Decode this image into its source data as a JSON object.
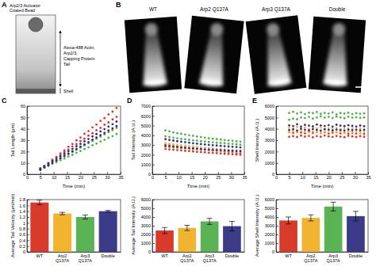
{
  "figure": {
    "panel_labels": [
      "A",
      "B",
      "C",
      "D",
      "E"
    ],
    "schematic": {
      "bead_label": [
        "Arp2/3 Activator",
        "Coated Bead"
      ],
      "tail_label": [
        "Alexa-488 Actin,",
        "Arp2/3,",
        "Capping Protein",
        "Tail"
      ],
      "shell_label": "Shell"
    },
    "images": {
      "labels": [
        "WT",
        "Arp2 Q137A",
        "Arp3 Q137A",
        "Double"
      ]
    }
  },
  "chart_data": [
    {
      "type": "scatter",
      "x_label": "Time (min)",
      "y_label": "Tail Length (μm)",
      "marker": "circle",
      "x": [
        5,
        6.5,
        8,
        9.5,
        11,
        12.5,
        14,
        15.5,
        17,
        18.5,
        20,
        21.5,
        23,
        24.5,
        26,
        27.5,
        29,
        30.5,
        32,
        33.5
      ],
      "xlim": [
        0,
        35
      ],
      "xticks": [
        0,
        5,
        10,
        15,
        20,
        25,
        30,
        35
      ],
      "ylim": [
        0,
        60
      ],
      "yticks": [
        0,
        10,
        20,
        30,
        40,
        50,
        60
      ],
      "series": [
        {
          "color": "#e0322a",
          "values": [
            4.0,
            6.9,
            9.5,
            12.8,
            15.3,
            18.4,
            21.0,
            24.2,
            26.6,
            29.9,
            32.4,
            35.6,
            38.0,
            41.3,
            43.7,
            47.0,
            49.4,
            52.7,
            55.1,
            58.3
          ]
        },
        {
          "color": "#e0322a",
          "values": [
            5.2,
            7.3,
            10.0,
            12.1,
            14.8,
            16.9,
            19.6,
            21.7,
            24.4,
            26.5,
            29.2,
            31.3,
            34.0,
            36.1,
            38.8,
            40.9,
            43.6,
            45.7,
            48.4,
            50.5
          ]
        },
        {
          "color": "#f3b535",
          "values": [
            4.1,
            6.0,
            8.2,
            10.0,
            12.2,
            14.1,
            16.3,
            18.1,
            20.3,
            22.2,
            24.4,
            26.2,
            28.4,
            30.3,
            32.5,
            34.3,
            36.5,
            38.4,
            40.6,
            42.4
          ]
        },
        {
          "color": "#f3b535",
          "values": [
            5.0,
            6.9,
            8.8,
            10.6,
            12.5,
            14.4,
            16.2,
            18.1,
            20.0,
            21.9,
            23.7,
            25.6,
            27.5,
            29.4,
            31.2,
            33.1,
            35.0,
            36.9,
            38.7,
            40.6
          ]
        },
        {
          "color": "#4fb04a",
          "values": [
            4.2,
            5.9,
            8.0,
            9.8,
            11.9,
            13.7,
            15.8,
            17.6,
            19.7,
            21.5,
            23.6,
            25.4,
            27.5,
            29.3,
            31.4,
            33.2,
            35.3,
            37.1,
            39.2,
            41.0
          ]
        },
        {
          "color": "#4fb04a",
          "values": [
            3.9,
            5.7,
            7.2,
            9.0,
            10.5,
            12.3,
            13.8,
            15.6,
            17.1,
            18.9,
            20.4,
            22.2,
            23.7,
            25.5,
            27.0,
            28.8,
            30.3,
            32.1,
            33.6,
            35.4
          ]
        },
        {
          "color": "#2f2f8f",
          "values": [
            5.1,
            7.2,
            9.3,
            11.6,
            13.6,
            15.9,
            18.0,
            20.3,
            22.3,
            24.6,
            26.7,
            29.0,
            31.0,
            33.3,
            35.4,
            37.7,
            39.7,
            42.0,
            44.1,
            46.4
          ]
        },
        {
          "color": "#2f2f8f",
          "values": [
            3.8,
            6.1,
            8.0,
            10.1,
            12.0,
            14.2,
            16.1,
            18.2,
            20.1,
            22.3,
            24.2,
            26.3,
            28.2,
            30.4,
            32.3,
            34.4,
            36.3,
            38.5,
            40.4,
            42.5
          ]
        }
      ]
    },
    {
      "type": "bar",
      "y_label": "Average Tail Velocity (μm/min)",
      "categories": [
        "WT",
        "Arp2 Q137A",
        "Arp3 Q137A",
        "Double"
      ],
      "values": [
        1.7,
        1.32,
        1.2,
        1.4
      ],
      "errors": [
        0.08,
        0.04,
        0.07,
        0.03
      ],
      "colors": [
        "#d93b2b",
        "#f0b430",
        "#5ab453",
        "#3b3b8a"
      ],
      "ylim": [
        0,
        1.8
      ],
      "yticks": [
        0,
        0.2,
        0.4,
        0.6,
        0.8,
        1,
        1.2,
        1.4,
        1.6,
        1.8
      ]
    },
    {
      "type": "scatter",
      "x_label": "Time (min)",
      "y_label": "Tail Intensity (A.U.)",
      "marker": "circle",
      "x": [
        5,
        6.5,
        8,
        9.5,
        11,
        12.5,
        14,
        15.5,
        17,
        18.5,
        20,
        21.5,
        23,
        24.5,
        26,
        27.5,
        29,
        30.5,
        32,
        33.5
      ],
      "xlim": [
        0,
        35
      ],
      "xticks": [
        0,
        5,
        10,
        15,
        20,
        25,
        30,
        35
      ],
      "ylim": [
        0,
        7000
      ],
      "yticks": [
        0,
        1000,
        2000,
        3000,
        4000,
        5000,
        6000,
        7000
      ],
      "series": [
        {
          "color": "#e0322a",
          "values": [
            3050,
            2980,
            2900,
            2870,
            2800,
            2760,
            2700,
            2650,
            2620,
            2560,
            2520,
            2470,
            2430,
            2400,
            2360,
            2320,
            2280,
            2250,
            2210,
            2180
          ]
        },
        {
          "color": "#e0322a",
          "values": [
            2600,
            2550,
            2520,
            2480,
            2450,
            2400,
            2380,
            2340,
            2300,
            2280,
            2250,
            2210,
            2190,
            2160,
            2130,
            2100,
            2080,
            2050,
            2020,
            2000
          ]
        },
        {
          "color": "#f3b535",
          "values": [
            3200,
            3150,
            3080,
            3020,
            2980,
            2930,
            2880,
            2850,
            2800,
            2760,
            2720,
            2690,
            2650,
            2620,
            2580,
            2550,
            2520,
            2490,
            2460,
            2440
          ]
        },
        {
          "color": "#f3b535",
          "values": [
            2800,
            2760,
            2720,
            2700,
            2660,
            2630,
            2600,
            2570,
            2540,
            2510,
            2490,
            2460,
            2440,
            2410,
            2390,
            2370,
            2350,
            2320,
            2300,
            2280
          ]
        },
        {
          "color": "#4fb04a",
          "values": [
            4500,
            4400,
            4300,
            4220,
            4150,
            4080,
            4000,
            3950,
            3880,
            3820,
            3760,
            3700,
            3650,
            3600,
            3560,
            3510,
            3470,
            3430,
            3390,
            3350
          ]
        },
        {
          "color": "#4fb04a",
          "values": [
            3900,
            3820,
            3760,
            3700,
            3640,
            3590,
            3540,
            3490,
            3450,
            3400,
            3360,
            3320,
            3280,
            3240,
            3210,
            3180,
            3140,
            3110,
            3080,
            3050
          ]
        },
        {
          "color": "#2f2f8f",
          "values": [
            3600,
            3520,
            3460,
            3400,
            3340,
            3290,
            3240,
            3190,
            3150,
            3100,
            3060,
            3020,
            2980,
            2950,
            2910,
            2880,
            2850,
            2820,
            2790,
            2760
          ]
        },
        {
          "color": "#2f2f8f",
          "values": [
            2900,
            2860,
            2820,
            2780,
            2740,
            2710,
            2680,
            2650,
            2620,
            2590,
            2560,
            2540,
            2510,
            2490,
            2470,
            2440,
            2420,
            2400,
            2380,
            2360
          ]
        }
      ]
    },
    {
      "type": "bar",
      "y_label": "Average Tail Intensity (A.U.)",
      "categories": [
        "WT",
        "Arp2 Q137A",
        "Arp3 Q137A",
        "Double"
      ],
      "values": [
        2450,
        2750,
        3500,
        2950
      ],
      "errors": [
        350,
        300,
        350,
        550
      ],
      "colors": [
        "#d93b2b",
        "#f0b430",
        "#5ab453",
        "#3b3b8a"
      ],
      "ylim": [
        0,
        6000
      ],
      "yticks": [
        0,
        1000,
        2000,
        3000,
        4000,
        5000,
        6000
      ]
    },
    {
      "type": "scatter",
      "x_label": "Time (min)",
      "y_label": "Shell Intensity (A.U.)",
      "marker": "circle",
      "x": [
        5,
        6.5,
        8,
        9.5,
        11,
        12.5,
        14,
        15.5,
        17,
        18.5,
        20,
        21.5,
        23,
        24.5,
        26,
        27.5,
        29,
        30.5,
        32,
        33.5
      ],
      "xlim": [
        0,
        35
      ],
      "xticks": [
        0,
        5,
        10,
        15,
        20,
        25,
        30,
        35
      ],
      "ylim": [
        0,
        6000
      ],
      "yticks": [
        0,
        1000,
        2000,
        3000,
        4000,
        5000,
        6000
      ],
      "series": [
        {
          "color": "#e0322a",
          "values": [
            3700,
            3650,
            3720,
            3680,
            3600,
            3750,
            3640,
            3700,
            3620,
            3690,
            3580,
            3660,
            3710,
            3600,
            3650,
            3570,
            3640,
            3590,
            3620,
            3550
          ]
        },
        {
          "color": "#e0322a",
          "values": [
            3300,
            3350,
            3280,
            3400,
            3320,
            3380,
            3250,
            3360,
            3300,
            3410,
            3340,
            3290,
            3370,
            3310,
            3260,
            3390,
            3330,
            3280,
            3350,
            3300
          ]
        },
        {
          "color": "#f3b535",
          "values": [
            4100,
            4050,
            4150,
            4000,
            4120,
            3980,
            4080,
            4030,
            4110,
            3990,
            4060,
            4020,
            4090,
            3970,
            4040,
            4000,
            4070,
            3950,
            4020,
            3980
          ]
        },
        {
          "color": "#f3b535",
          "values": [
            3700,
            3760,
            3680,
            3800,
            3720,
            3690,
            3780,
            3710,
            3650,
            3740,
            3700,
            3770,
            3680,
            3730,
            3660,
            3750,
            3690,
            3720,
            3640,
            3700
          ]
        },
        {
          "color": "#4fb04a",
          "values": [
            5400,
            5500,
            5350,
            5450,
            5300,
            5420,
            5380,
            5480,
            5320,
            5400,
            5350,
            5450,
            5280,
            5390,
            5340,
            5420,
            5300,
            5380,
            5330,
            5360
          ]
        },
        {
          "color": "#4fb04a",
          "values": [
            4800,
            4900,
            4850,
            5000,
            4950,
            5050,
            4900,
            5000,
            5100,
            4980,
            5050,
            4950,
            5080,
            5000,
            4930,
            5060,
            4980,
            5020,
            4960,
            5000
          ]
        },
        {
          "color": "#2f2f8f",
          "values": [
            4300,
            4250,
            4400,
            4200,
            4350,
            4280,
            4220,
            4380,
            4300,
            4250,
            4320,
            4200,
            4360,
            4280,
            4240,
            4310,
            4260,
            4200,
            4290,
            4230
          ]
        },
        {
          "color": "#2f2f8f",
          "values": [
            3900,
            3950,
            3850,
            4000,
            3920,
            3880,
            3970,
            3900,
            3840,
            3960,
            3910,
            3870,
            3940,
            3890,
            3850,
            3930,
            3880,
            3920,
            3860,
            3900
          ]
        }
      ]
    },
    {
      "type": "bar",
      "y_label": "Average Shell Intensity (A.U.)",
      "categories": [
        "WT",
        "Arp2 Q137A",
        "Arp3 Q137A",
        "Double"
      ],
      "values": [
        3600,
        3900,
        5200,
        4100
      ],
      "errors": [
        400,
        350,
        500,
        550
      ],
      "colors": [
        "#d93b2b",
        "#f0b430",
        "#5ab453",
        "#3b3b8a"
      ],
      "ylim": [
        0,
        6000
      ],
      "yticks": [
        0,
        1000,
        2000,
        3000,
        4000,
        5000,
        6000
      ]
    }
  ]
}
